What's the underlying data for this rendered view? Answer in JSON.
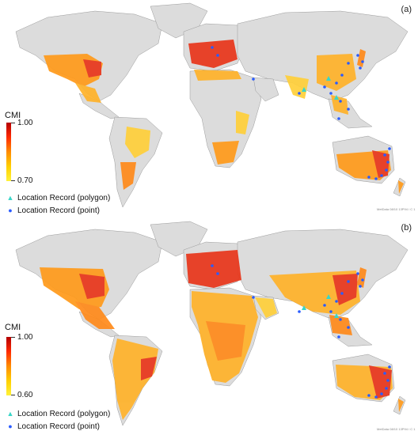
{
  "panels": [
    {
      "label": "(a)",
      "legend": {
        "title": "CMI",
        "max_label": "1.00",
        "min_label": "0.70"
      },
      "records": [
        {
          "symbol": "▲",
          "label": "Location Record (polygon)",
          "color": "#3ad6c8"
        },
        {
          "symbol": "●",
          "label": "Location Record (point)",
          "color": "#2a5cff"
        }
      ],
      "credit": "MetData 08/10 13P94 / C 1"
    },
    {
      "label": "(b)",
      "legend": {
        "title": "CMI",
        "max_label": "1.00",
        "min_label": "0.60"
      },
      "records": [
        {
          "symbol": "▲",
          "label": "Location Record (polygon)",
          "color": "#3ad6c8"
        },
        {
          "symbol": "●",
          "label": "Location Record (point)",
          "color": "#2a5cff"
        }
      ],
      "credit": "MetData 08/10 13P94 / C 1"
    }
  ],
  "colors": {
    "land": "#dcdcdc",
    "suitable_low": "#ffe23a",
    "suitable_mid": "#ff9a1a",
    "suitable_high": "#e8361a",
    "border": "#9a9a9a"
  }
}
